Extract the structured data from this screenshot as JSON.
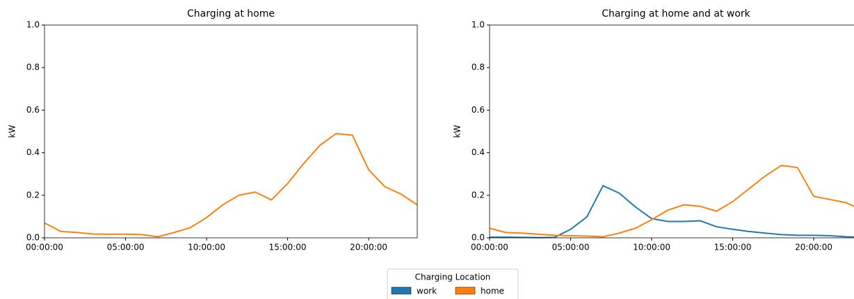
{
  "chart_data": [
    {
      "type": "line",
      "title": "Charging at home",
      "ylabel": "kW",
      "x": [
        0,
        1,
        2,
        3,
        4,
        5,
        6,
        7,
        8,
        9,
        10,
        11,
        12,
        13,
        14,
        15,
        16,
        17,
        18,
        19,
        20,
        21,
        22,
        23
      ],
      "xlim": [
        0,
        23
      ],
      "xticks": [
        {
          "value": 0,
          "label": "00:00:00"
        },
        {
          "value": 5,
          "label": "05:00:00"
        },
        {
          "value": 10,
          "label": "10:00:00"
        },
        {
          "value": 15,
          "label": "15:00:00"
        },
        {
          "value": 20,
          "label": "20:00:00"
        }
      ],
      "ylim": [
        0,
        1
      ],
      "yticks": [
        {
          "value": 0,
          "label": "0.0"
        },
        0.2,
        0.4,
        0.6,
        0.8,
        {
          "value": 1,
          "label": "1.0"
        }
      ],
      "series": [
        {
          "name": "home",
          "color": "#ff7f0e",
          "values": [
            0.07,
            0.03,
            0.025,
            0.018,
            0.017,
            0.017,
            0.015,
            0.005,
            0.025,
            0.048,
            0.095,
            0.155,
            0.2,
            0.215,
            0.178,
            0.255,
            0.35,
            0.435,
            0.49,
            0.482,
            0.32,
            0.24,
            0.205,
            0.155
          ]
        }
      ]
    },
    {
      "type": "line",
      "title": "Charging at home and at work",
      "ylabel": "kW",
      "x": [
        0,
        1,
        2,
        3,
        4,
        5,
        6,
        7,
        8,
        9,
        10,
        11,
        12,
        13,
        14,
        15,
        16,
        17,
        18,
        19,
        20,
        21,
        22,
        23
      ],
      "xlim": [
        0,
        23
      ],
      "xticks": [
        {
          "value": 0,
          "label": "00:00:00"
        },
        {
          "value": 5,
          "label": "05:00:00"
        },
        {
          "value": 10,
          "label": "10:00:00"
        },
        {
          "value": 15,
          "label": "15:00:00"
        },
        {
          "value": 20,
          "label": "20:00:00"
        }
      ],
      "ylim": [
        0,
        1
      ],
      "yticks": [
        {
          "value": 0,
          "label": "0.0"
        },
        0.2,
        0.4,
        0.6,
        0.8,
        {
          "value": 1,
          "label": "1.0"
        }
      ],
      "legend_title": "Charging Location",
      "series": [
        {
          "name": "work",
          "color": "#1f77b4",
          "values": [
            0.003,
            0.003,
            0.002,
            0.001,
            0.002,
            0.04,
            0.098,
            0.245,
            0.21,
            0.145,
            0.09,
            0.077,
            0.077,
            0.08,
            0.052,
            0.04,
            0.03,
            0.022,
            0.015,
            0.012,
            0.012,
            0.01,
            0.005,
            0.002
          ]
        },
        {
          "name": "home",
          "color": "#ff7f0e",
          "values": [
            0.045,
            0.025,
            0.022,
            0.017,
            0.012,
            0.01,
            0.008,
            0.005,
            0.022,
            0.045,
            0.085,
            0.13,
            0.155,
            0.148,
            0.125,
            0.17,
            0.23,
            0.29,
            0.34,
            0.33,
            0.195,
            0.18,
            0.165,
            0.13
          ]
        }
      ]
    }
  ]
}
